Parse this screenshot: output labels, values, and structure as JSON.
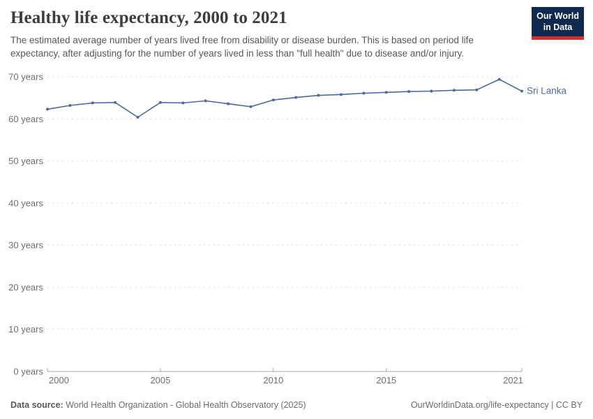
{
  "header": {
    "title": "Healthy life expectancy, 2000 to 2021",
    "subtitle": "The estimated average number of years lived free from disability or disease burden. This is based on period life expectancy, after adjusting for the number of years lived in less than \"full health\" due to disease and/or injury."
  },
  "logo": {
    "line1": "Our World",
    "line2": "in Data"
  },
  "chart_data": {
    "type": "line",
    "title": "Healthy life expectancy, 2000 to 2021",
    "x": [
      2000,
      2001,
      2002,
      2003,
      2004,
      2005,
      2006,
      2007,
      2008,
      2009,
      2010,
      2011,
      2012,
      2013,
      2014,
      2015,
      2016,
      2017,
      2018,
      2019,
      2020,
      2021
    ],
    "series": [
      {
        "name": "Sri Lanka",
        "color": "#4c6a9c",
        "values": [
          62.3,
          63.2,
          63.8,
          63.9,
          60.4,
          63.9,
          63.8,
          64.3,
          63.6,
          62.9,
          64.5,
          65.1,
          65.6,
          65.8,
          66.1,
          66.3,
          66.5,
          66.6,
          66.8,
          66.9,
          69.4,
          66.6
        ]
      }
    ],
    "xlabel": "",
    "ylabel": "",
    "xlim": [
      2000,
      2021
    ],
    "ylim": [
      0,
      70
    ],
    "x_ticks": [
      2000,
      2005,
      2010,
      2015,
      2021
    ],
    "y_ticks": [
      0,
      10,
      20,
      30,
      40,
      50,
      60,
      70
    ],
    "y_tick_suffix": " years",
    "grid": "horizontal-dashed",
    "legend_position": "end-of-line-label",
    "entity_label": "Sri Lanka"
  },
  "footer": {
    "datasource_label": "Data source:",
    "datasource_text": " World Health Organization - Global Health Observatory (2025)",
    "right_text": "OurWorldinData.org/life-expectancy | CC BY"
  },
  "colors": {
    "series": "#4c6a9c",
    "grid": "#dadada",
    "axis": "#a8a8a8",
    "tick_label": "#6e6e6e",
    "title": "#3d3d3d",
    "subtitle": "#575757",
    "logo_bg": "#0f2a4e",
    "logo_stripe": "#d1322e"
  }
}
